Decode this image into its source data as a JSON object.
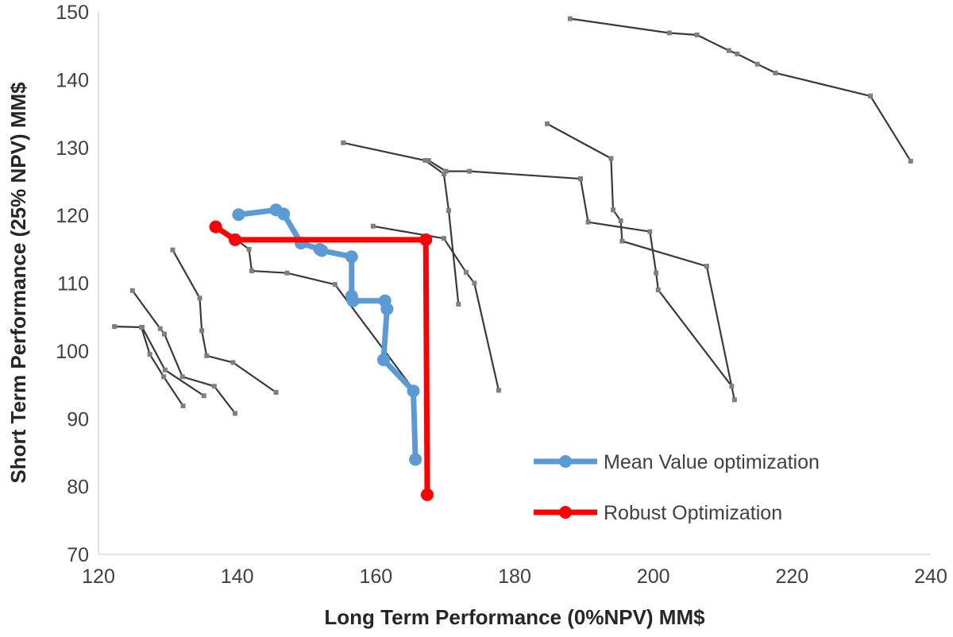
{
  "chart_data": {
    "type": "line",
    "xlabel": "Long Term Performance (0%NPV) MM$",
    "ylabel": "Short Term Performance (25% NPV) MM$",
    "xlim": [
      120,
      240
    ],
    "ylim": [
      70,
      150
    ],
    "xticks": [
      120,
      140,
      160,
      180,
      200,
      220,
      240
    ],
    "yticks": [
      70,
      80,
      90,
      100,
      110,
      120,
      130,
      140,
      150
    ],
    "grid": false,
    "legend_position": "bottom-right",
    "legend": [
      {
        "label": "Mean Value optimization",
        "color": "#5b9bd5"
      },
      {
        "label": "Robust Optimization",
        "color": "#ff0000"
      }
    ],
    "background_series": [
      {
        "points": [
          [
            188.0,
            149.0
          ],
          [
            202.3,
            146.9
          ],
          [
            206.3,
            146.6
          ],
          [
            210.9,
            144.3
          ],
          [
            212.1,
            143.8
          ],
          [
            215.0,
            142.3
          ],
          [
            217.6,
            141.0
          ],
          [
            231.3,
            137.6
          ],
          [
            237.1,
            128.0
          ]
        ]
      },
      {
        "points": [
          [
            184.7,
            133.5
          ],
          [
            193.9,
            128.4
          ],
          [
            194.2,
            120.8
          ],
          [
            195.3,
            119.2
          ],
          [
            195.5,
            116.2
          ],
          [
            207.7,
            112.5
          ],
          [
            211.7,
            92.8
          ]
        ]
      },
      {
        "points": [
          [
            155.3,
            130.7
          ],
          [
            167.1,
            128.1
          ],
          [
            169.8,
            126.1
          ],
          [
            170.5,
            120.7
          ],
          [
            171.9,
            106.9
          ]
        ]
      },
      {
        "points": [
          [
            167.6,
            128.1
          ],
          [
            170.1,
            126.5
          ],
          [
            173.5,
            126.5
          ],
          [
            189.5,
            125.4
          ],
          [
            190.6,
            119.0
          ],
          [
            199.5,
            117.6
          ],
          [
            200.4,
            111.5
          ],
          [
            200.7,
            109.0
          ],
          [
            211.3,
            94.8
          ]
        ]
      },
      {
        "points": [
          [
            159.6,
            118.4
          ],
          [
            169.8,
            116.6
          ],
          [
            173.0,
            111.6
          ],
          [
            174.2,
            110.0
          ],
          [
            177.7,
            94.2
          ]
        ]
      },
      {
        "points": [
          [
            139.4,
            116.8
          ],
          [
            141.7,
            115.0
          ],
          [
            142.1,
            111.8
          ],
          [
            147.2,
            111.5
          ],
          [
            154.1,
            109.8
          ],
          [
            165.5,
            94.2
          ]
        ]
      },
      {
        "points": [
          [
            130.7,
            114.9
          ],
          [
            134.6,
            107.8
          ],
          [
            134.9,
            103.0
          ],
          [
            135.6,
            99.3
          ],
          [
            139.4,
            98.3
          ],
          [
            145.6,
            93.9
          ]
        ]
      },
      {
        "points": [
          [
            124.9,
            108.9
          ],
          [
            128.9,
            103.3
          ],
          [
            129.5,
            102.5
          ],
          [
            132.1,
            96.2
          ],
          [
            136.7,
            94.8
          ],
          [
            139.7,
            90.8
          ]
        ]
      },
      {
        "points": [
          [
            122.3,
            103.6
          ],
          [
            126.2,
            103.5
          ],
          [
            127.4,
            99.5
          ],
          [
            129.4,
            96.2
          ],
          [
            132.2,
            91.9
          ]
        ]
      },
      {
        "points": [
          [
            126.3,
            103.5
          ],
          [
            129.6,
            97.2
          ],
          [
            135.2,
            93.4
          ]
        ]
      },
      {
        "points": [
          [
            140.0,
            120.1
          ],
          [
            145.5,
            120.9
          ],
          [
            146.9,
            119.6
          ]
        ]
      }
    ],
    "series": [
      {
        "name": "Mean Value optimization",
        "color": "#5b9bd5",
        "x": [
          140.2,
          145.6,
          146.7,
          149.2,
          151.9,
          152.2,
          156.5,
          156.5,
          156.7,
          161.3,
          161.6,
          161.1,
          165.4,
          165.7
        ],
        "y": [
          120.1,
          120.8,
          120.2,
          115.9,
          115.0,
          114.8,
          113.9,
          108.1,
          107.4,
          107.4,
          106.2,
          98.7,
          94.1,
          84.0
        ]
      },
      {
        "name": "Robust Optimization",
        "color": "#ff0000",
        "x": [
          136.9,
          139.7,
          167.2,
          167.4
        ],
        "y": [
          118.3,
          116.4,
          116.4,
          78.8
        ]
      }
    ]
  }
}
